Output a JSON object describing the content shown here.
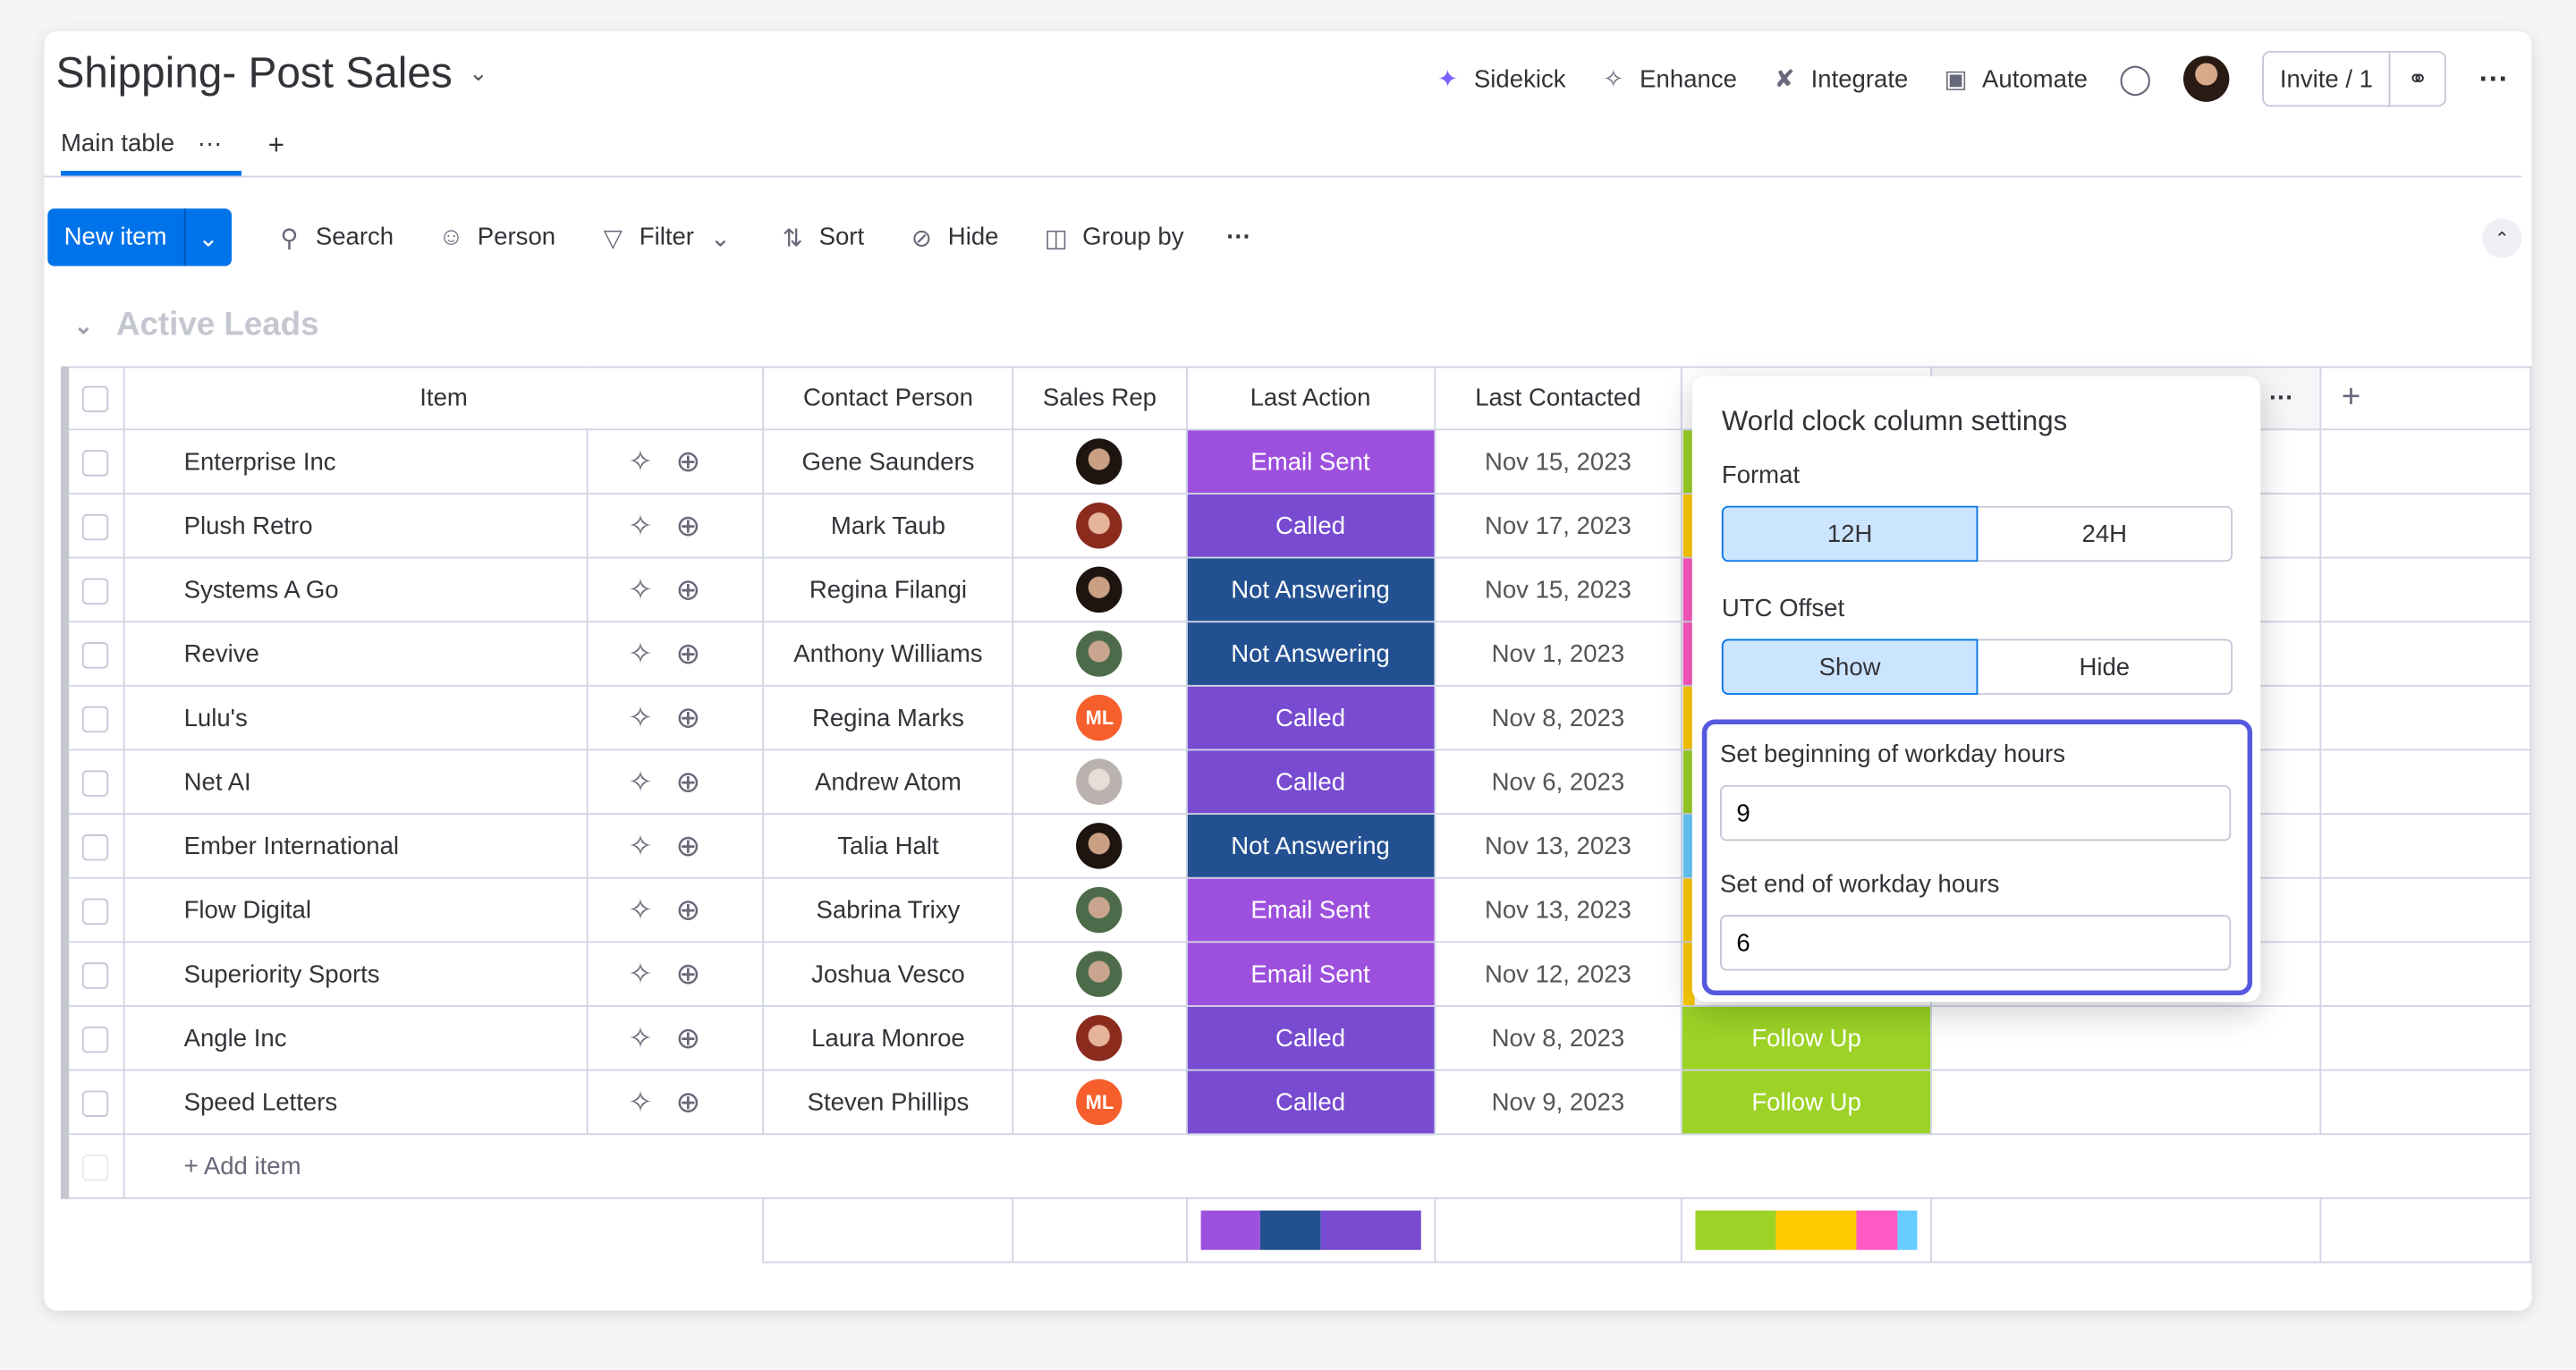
{
  "header": {
    "title": "Shipping- Post Sales",
    "actions": [
      "Sidekick",
      "Enhance",
      "Integrate",
      "Automate"
    ],
    "invite": "Invite / 1"
  },
  "tabs": {
    "main": "Main table"
  },
  "toolbar": {
    "new_item": "New item",
    "search": "Search",
    "person": "Person",
    "filter": "Filter",
    "sort": "Sort",
    "hide": "Hide",
    "group_by": "Group by"
  },
  "group": {
    "title": "Active Leads"
  },
  "columns": {
    "item": "Item",
    "contact": "Contact Person",
    "rep": "Sales Rep",
    "action": "Last Action",
    "contacted": "Last Contacted"
  },
  "status_colors": {
    "Email Sent": "#9d50dd",
    "Called": "#784bd1",
    "Not Answering": "#225091",
    "Follow Up": "#9cd326"
  },
  "stripe_colors": {
    "green": "#9cd326",
    "yellow": "#ffcb00",
    "pink": "#ff5ac4",
    "blue": "#66ccff"
  },
  "rows": [
    {
      "item": "Enterprise Inc",
      "contact": "Gene Saunders",
      "rep": "dark",
      "action": "Email Sent",
      "date": "Nov 15, 2023",
      "status": "green"
    },
    {
      "item": "Plush Retro",
      "contact": "Mark Taub",
      "rep": "red",
      "action": "Called",
      "date": "Nov 17, 2023",
      "status": "yellow"
    },
    {
      "item": "Systems A Go",
      "contact": "Regina Filangi",
      "rep": "dark",
      "action": "Not Answering",
      "date": "Nov 15, 2023",
      "status": "pink"
    },
    {
      "item": "Revive",
      "contact": "Anthony Williams",
      "rep": "green",
      "action": "Not Answering",
      "date": "Nov 1, 2023",
      "status": "pink"
    },
    {
      "item": "Lulu's",
      "contact": "Regina Marks",
      "rep": "ML",
      "action": "Called",
      "date": "Nov 8, 2023",
      "status": "yellow"
    },
    {
      "item": "Net AI",
      "contact": "Andrew Atom",
      "rep": "light",
      "action": "Called",
      "date": "Nov 6, 2023",
      "status": "green"
    },
    {
      "item": "Ember International",
      "contact": "Talia Halt",
      "rep": "dark",
      "action": "Not Answering",
      "date": "Nov 13, 2023",
      "status": "blue"
    },
    {
      "item": "Flow Digital",
      "contact": "Sabrina Trixy",
      "rep": "green",
      "action": "Email Sent",
      "date": "Nov 13, 2023",
      "status": "yellow"
    },
    {
      "item": "Superiority Sports",
      "contact": "Joshua Vesco",
      "rep": "green",
      "action": "Email Sent",
      "date": "Nov 12, 2023",
      "status": "yellow"
    },
    {
      "item": "Angle Inc",
      "contact": "Laura Monroe",
      "rep": "red",
      "action": "Called",
      "date": "Nov 8, 2023",
      "status": "green",
      "status_label": "Follow Up"
    },
    {
      "item": "Speed Letters",
      "contact": "Steven Phillips",
      "rep": "ML",
      "action": "Called",
      "date": "Nov 9, 2023",
      "status": "green",
      "status_label": "Follow Up"
    }
  ],
  "add_item": "+ Add item",
  "popup": {
    "title": "World clock column settings",
    "format_label": "Format",
    "format_options": [
      "12H",
      "24H"
    ],
    "format_selected": "12H",
    "utc_label": "UTC Offset",
    "utc_options": [
      "Show",
      "Hide"
    ],
    "utc_selected": "Show",
    "begin_label": "Set beginning of workday hours",
    "begin_value": "9",
    "end_label": "Set end of workday hours",
    "end_value": "6"
  }
}
